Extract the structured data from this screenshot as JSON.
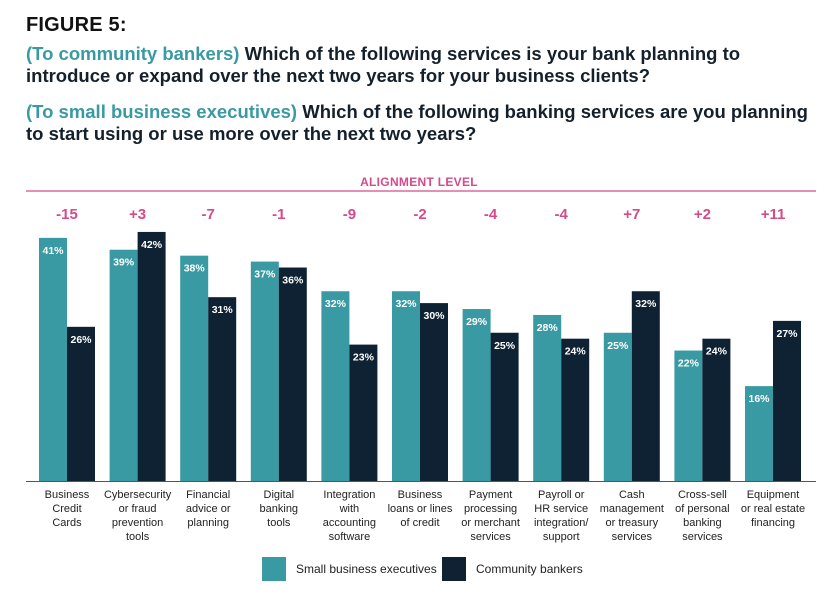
{
  "figure_label": "FIGURE 5:",
  "questions": [
    {
      "lead": "(To community bankers)",
      "text": " Which of the following services is your bank planning to introduce or expand over the next two years for your business clients?"
    },
    {
      "lead": "(To small business executives)",
      "text": " Which of the following banking services are you planning to start using or use more over the next two years?"
    }
  ],
  "colors": {
    "small_business": "#3a9aa3",
    "community_bankers": "#0f2233",
    "alignment": "#d6498a",
    "question_lead": "#3a9aa3"
  },
  "chart_data": {
    "type": "bar",
    "title": "ALIGNMENT LEVEL",
    "categories": [
      [
        "Business",
        "Credit",
        "Cards"
      ],
      [
        "Cybersecurity",
        "or fraud",
        "prevention",
        "tools"
      ],
      [
        "Financial",
        "advice or",
        "planning"
      ],
      [
        "Digital",
        "banking",
        "tools"
      ],
      [
        "Integration",
        "with",
        "accounting",
        "software"
      ],
      [
        "Business",
        "loans or lines",
        "of credit"
      ],
      [
        "Payment",
        "processing",
        "or merchant",
        "services"
      ],
      [
        "Payroll or",
        "HR service",
        "integration/",
        "support"
      ],
      [
        "Cash",
        "management",
        "or treasury",
        "services"
      ],
      [
        "Cross-sell",
        "of personal",
        "banking",
        "services"
      ],
      [
        "Equipment",
        "or real estate",
        "financing"
      ]
    ],
    "alignment_levels": [
      "-15",
      "+3",
      "-7",
      "-1",
      "-9",
      "-2",
      "-4",
      "-4",
      "+7",
      "+2",
      "+11"
    ],
    "series": [
      {
        "name": "Small business executives",
        "values": [
          41,
          39,
          38,
          37,
          32,
          32,
          29,
          28,
          25,
          22,
          16
        ],
        "labels": [
          "41%",
          "39%",
          "38%",
          "37%",
          "32%",
          "32%",
          "29%",
          "28%",
          "25%",
          "22%",
          "16%"
        ]
      },
      {
        "name": "Community bankers",
        "values": [
          26,
          42,
          31,
          36,
          23,
          30,
          25,
          24,
          32,
          24,
          27
        ],
        "labels": [
          "26%",
          "42%",
          "31%",
          "36%",
          "23%",
          "30%",
          "25%",
          "24%",
          "32%",
          "24%",
          "27%"
        ]
      }
    ],
    "ylim": [
      0,
      42
    ],
    "grid": false,
    "legend_position": "bottom-center"
  }
}
